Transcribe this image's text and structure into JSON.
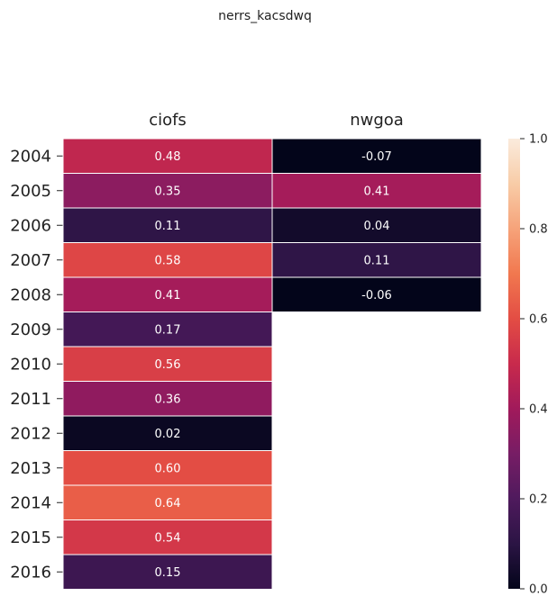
{
  "chart_data": {
    "type": "heatmap",
    "title": "nerrs_kacsdwq",
    "columns": [
      "ciofs",
      "nwgoa"
    ],
    "rows": [
      "2004",
      "2005",
      "2006",
      "2007",
      "2008",
      "2009",
      "2010",
      "2011",
      "2012",
      "2013",
      "2014",
      "2015",
      "2016"
    ],
    "values": [
      [
        0.48,
        -0.07
      ],
      [
        0.35,
        0.41
      ],
      [
        0.11,
        0.04
      ],
      [
        0.58,
        0.11
      ],
      [
        0.41,
        -0.06
      ],
      [
        0.17,
        null
      ],
      [
        0.56,
        null
      ],
      [
        0.36,
        null
      ],
      [
        0.02,
        null
      ],
      [
        0.6,
        null
      ],
      [
        0.64,
        null
      ],
      [
        0.54,
        null
      ],
      [
        0.15,
        null
      ]
    ],
    "labels": [
      [
        "0.48",
        "-0.07"
      ],
      [
        "0.35",
        "0.41"
      ],
      [
        "0.11",
        "0.04"
      ],
      [
        "0.58",
        "0.11"
      ],
      [
        "0.41",
        "-0.06"
      ],
      [
        "0.17",
        null
      ],
      [
        "0.56",
        null
      ],
      [
        "0.36",
        null
      ],
      [
        "0.02",
        null
      ],
      [
        "0.60",
        null
      ],
      [
        "0.64",
        null
      ],
      [
        "0.54",
        null
      ],
      [
        "0.15",
        null
      ]
    ],
    "colorbar": {
      "min": 0.0,
      "max": 1.0,
      "ticks": [
        0.0,
        0.2,
        0.4,
        0.6,
        0.8,
        1.0
      ],
      "tick_labels": [
        "0.0",
        "0.2",
        "0.4",
        "0.6",
        "0.8",
        "1.0"
      ],
      "colormap": "rocket"
    },
    "grid": false,
    "legend": "colorbar-right"
  }
}
